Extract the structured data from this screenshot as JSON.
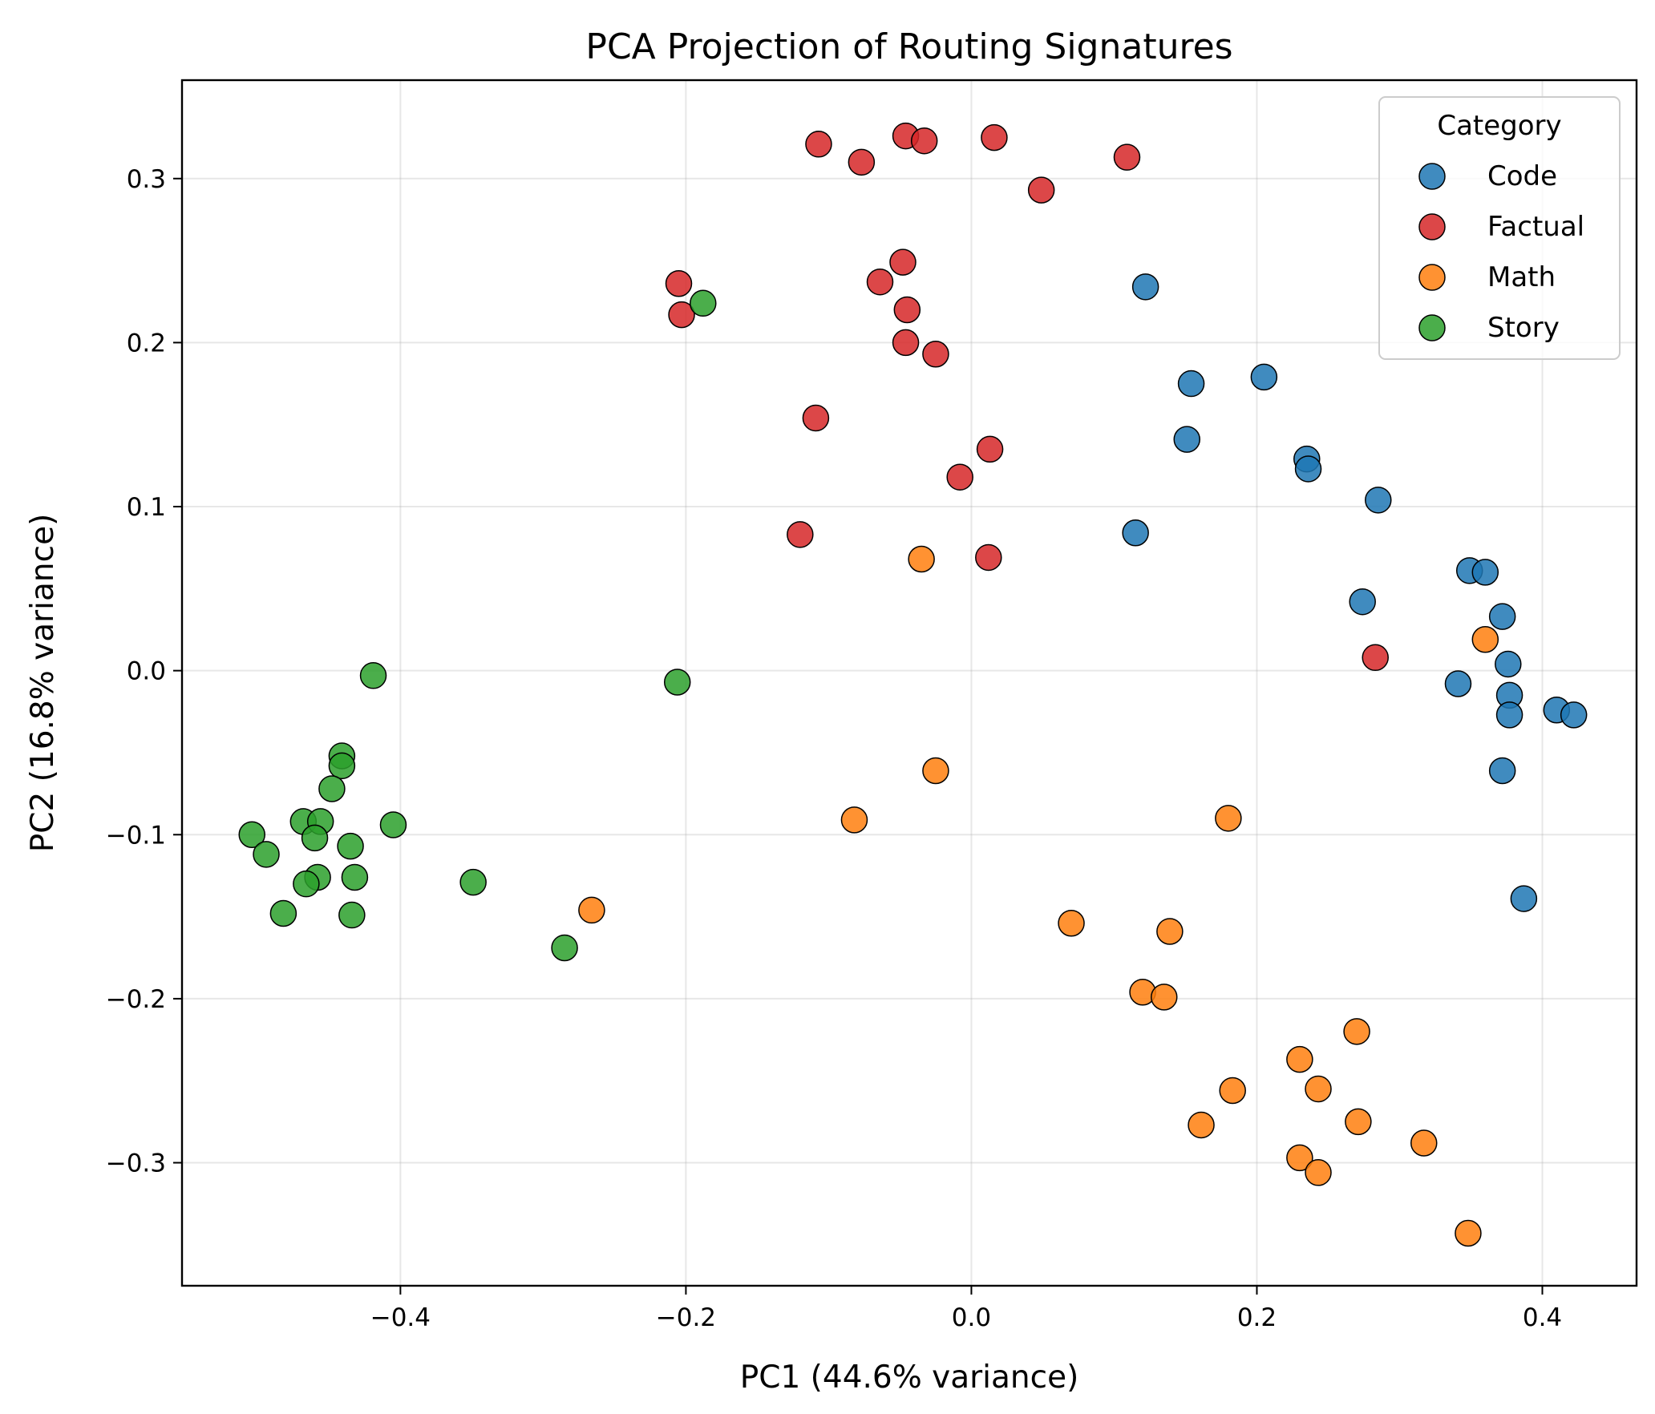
{
  "chart_data": {
    "type": "scatter",
    "title": "PCA Projection of Routing Signatures",
    "xlabel": "PC1 (44.6% variance)",
    "ylabel": "PC2 (16.8% variance)",
    "xlim": [
      -0.553,
      0.466
    ],
    "ylim": [
      -0.375,
      0.36
    ],
    "xticks": [
      -0.4,
      -0.2,
      0.0,
      0.2,
      0.4
    ],
    "yticks": [
      -0.3,
      -0.2,
      -0.1,
      0.0,
      0.1,
      0.2,
      0.3
    ],
    "xtick_labels": [
      "−0.4",
      "−0.2",
      "0.0",
      "0.2",
      "0.4"
    ],
    "ytick_labels": [
      "−0.3",
      "−0.2",
      "−0.1",
      "0.0",
      "0.1",
      "0.2",
      "0.3"
    ],
    "grid": true,
    "legend": {
      "title": "Category",
      "position": "top-right"
    },
    "series": [
      {
        "name": "Code",
        "color": "#1f77b4",
        "points": [
          [
            0.122,
            0.234
          ],
          [
            0.154,
            0.175
          ],
          [
            0.205,
            0.179
          ],
          [
            0.151,
            0.141
          ],
          [
            0.235,
            0.129
          ],
          [
            0.236,
            0.123
          ],
          [
            0.285,
            0.104
          ],
          [
            0.115,
            0.084
          ],
          [
            0.349,
            0.061
          ],
          [
            0.36,
            0.06
          ],
          [
            0.274,
            0.042
          ],
          [
            0.372,
            0.033
          ],
          [
            0.376,
            0.004
          ],
          [
            0.341,
            -0.008
          ],
          [
            0.377,
            -0.015
          ],
          [
            0.377,
            -0.027
          ],
          [
            0.41,
            -0.024
          ],
          [
            0.422,
            -0.027
          ],
          [
            0.372,
            -0.061
          ],
          [
            0.387,
            -0.139
          ]
        ]
      },
      {
        "name": "Factual",
        "color": "#d62728",
        "points": [
          [
            -0.107,
            0.321
          ],
          [
            -0.046,
            0.326
          ],
          [
            -0.033,
            0.323
          ],
          [
            0.016,
            0.325
          ],
          [
            -0.077,
            0.31
          ],
          [
            0.109,
            0.313
          ],
          [
            0.049,
            0.293
          ],
          [
            -0.048,
            0.249
          ],
          [
            -0.205,
            0.236
          ],
          [
            -0.064,
            0.237
          ],
          [
            -0.203,
            0.217
          ],
          [
            -0.045,
            0.22
          ],
          [
            -0.046,
            0.2
          ],
          [
            -0.025,
            0.193
          ],
          [
            -0.109,
            0.154
          ],
          [
            0.013,
            0.135
          ],
          [
            -0.008,
            0.118
          ],
          [
            -0.12,
            0.083
          ],
          [
            0.012,
            0.069
          ],
          [
            0.283,
            0.008
          ]
        ]
      },
      {
        "name": "Math",
        "color": "#ff7f0e",
        "points": [
          [
            -0.035,
            0.068
          ],
          [
            0.36,
            0.019
          ],
          [
            -0.025,
            -0.061
          ],
          [
            -0.082,
            -0.091
          ],
          [
            0.18,
            -0.09
          ],
          [
            -0.266,
            -0.146
          ],
          [
            0.07,
            -0.154
          ],
          [
            0.139,
            -0.159
          ],
          [
            0.12,
            -0.196
          ],
          [
            0.135,
            -0.199
          ],
          [
            0.27,
            -0.22
          ],
          [
            0.23,
            -0.237
          ],
          [
            0.183,
            -0.256
          ],
          [
            0.243,
            -0.255
          ],
          [
            0.161,
            -0.277
          ],
          [
            0.271,
            -0.275
          ],
          [
            0.317,
            -0.288
          ],
          [
            0.23,
            -0.297
          ],
          [
            0.243,
            -0.306
          ],
          [
            0.348,
            -0.343
          ]
        ]
      },
      {
        "name": "Story",
        "color": "#2ca02c",
        "points": [
          [
            -0.188,
            0.224
          ],
          [
            -0.419,
            -0.003
          ],
          [
            -0.206,
            -0.007
          ],
          [
            -0.441,
            -0.052
          ],
          [
            -0.441,
            -0.058
          ],
          [
            -0.448,
            -0.072
          ],
          [
            -0.468,
            -0.092
          ],
          [
            -0.456,
            -0.092
          ],
          [
            -0.405,
            -0.094
          ],
          [
            -0.504,
            -0.1
          ],
          [
            -0.46,
            -0.102
          ],
          [
            -0.435,
            -0.107
          ],
          [
            -0.494,
            -0.112
          ],
          [
            -0.432,
            -0.126
          ],
          [
            -0.458,
            -0.126
          ],
          [
            -0.466,
            -0.13
          ],
          [
            -0.349,
            -0.129
          ],
          [
            -0.482,
            -0.148
          ],
          [
            -0.434,
            -0.149
          ],
          [
            -0.285,
            -0.169
          ]
        ]
      }
    ]
  }
}
